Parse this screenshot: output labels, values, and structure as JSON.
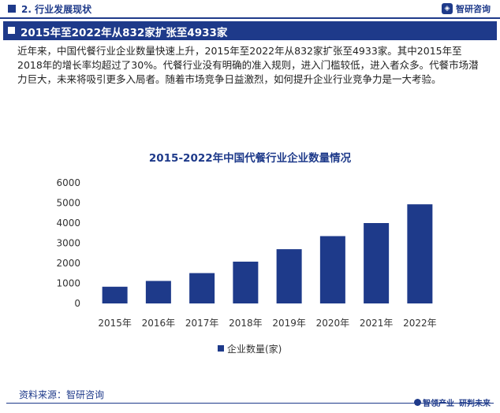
{
  "header": {
    "section_title": "2. 行业发展现状",
    "brand_icon": "zhiyan-logo-icon",
    "brand_name": "智研咨询"
  },
  "banner": {
    "title": "2015年至2022年从832家扩张至4933家"
  },
  "paragraph": "近年来，中国代餐行业企业数量快速上升，2015年至2022年从832家扩张至4933家。其中2015年至2018年的增长率均超过了30%。代餐行业没有明确的准入规则，进入门槛较低，进入者众多。代餐市场潜力巨大，未来将吸引更多入局者。随着市场竞争日益激烈，如何提升企业行业竞争力是一大考验。",
  "chart_data": {
    "type": "bar",
    "title": "2015-2022年中国代餐行业企业数量情况",
    "categories": [
      "2015年",
      "2016年",
      "2017年",
      "2018年",
      "2019年",
      "2020年",
      "2021年",
      "2022年"
    ],
    "series": [
      {
        "name": "企业数量(家)",
        "values": [
          832,
          1120,
          1510,
          2080,
          2700,
          3350,
          4000,
          4933
        ],
        "color": "#1e3a8a"
      }
    ],
    "yticks": [
      "0",
      "1000",
      "2000",
      "3000",
      "4000",
      "5000",
      "6000"
    ],
    "ylim": [
      0,
      6000
    ],
    "grid": false,
    "legend_position": "bottom"
  },
  "footer": {
    "source": "资料来源：智研咨询",
    "slogan_part1": "智领产业",
    "slogan_part2": "研判未来"
  },
  "colors": {
    "primary": "#1e3a8a",
    "background": "#ffffff"
  }
}
